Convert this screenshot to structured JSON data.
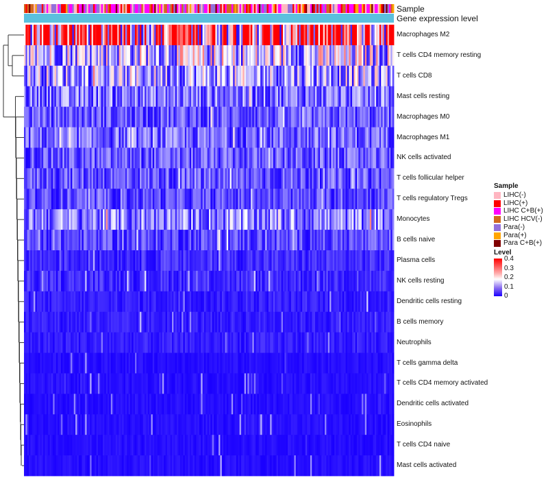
{
  "chart_data": {
    "type": "heatmap",
    "annotations": [
      "Sample",
      "Gene expression level"
    ],
    "rows": [
      {
        "label": "Macrophages M2",
        "mean": 0.3
      },
      {
        "label": "T cells CD4 memory resting",
        "mean": 0.14
      },
      {
        "label": "T cells CD8",
        "mean": 0.12
      },
      {
        "label": "Mast cells resting",
        "mean": 0.08
      },
      {
        "label": "Macrophages M0",
        "mean": 0.06
      },
      {
        "label": "Macrophages M1",
        "mean": 0.07
      },
      {
        "label": "NK cells activated",
        "mean": 0.06
      },
      {
        "label": "T cells follicular helper",
        "mean": 0.06
      },
      {
        "label": "T cells regulatory  Tregs",
        "mean": 0.05
      },
      {
        "label": "Monocytes",
        "mean": 0.09
      },
      {
        "label": "B cells naive",
        "mean": 0.05
      },
      {
        "label": "Plasma cells",
        "mean": 0.03
      },
      {
        "label": "NK cells resting",
        "mean": 0.03
      },
      {
        "label": "Dendritic cells resting",
        "mean": 0.02
      },
      {
        "label": "B cells memory",
        "mean": 0.02
      },
      {
        "label": "Neutrophils",
        "mean": 0.02
      },
      {
        "label": "T cells gamma delta",
        "mean": 0.01
      },
      {
        "label": "T cells CD4 memory activated",
        "mean": 0.01
      },
      {
        "label": "Dendritic cells activated",
        "mean": 0.01
      },
      {
        "label": "Eosinophils",
        "mean": 0.01
      },
      {
        "label": "T cells CD4 naive",
        "mean": 0.01
      },
      {
        "label": "Mast cells activated",
        "mean": 0.01
      }
    ],
    "sample_legend": {
      "title": "Sample",
      "items": [
        {
          "label": "LIHC(-)",
          "color": "#ffb6c1"
        },
        {
          "label": "LIHC(+)",
          "color": "#ff0000"
        },
        {
          "label": "LIHC C+B(+)",
          "color": "#ff00ff"
        },
        {
          "label": "LIHC HCV(-)",
          "color": "#d2691e"
        },
        {
          "label": "Para(-)",
          "color": "#9370db"
        },
        {
          "label": "Para(+)",
          "color": "#ffa500"
        },
        {
          "label": "Para C+B(+)",
          "color": "#800000"
        }
      ]
    },
    "level_legend": {
      "title": "Level",
      "ticks": [
        "0.4",
        "0.3",
        "0.2",
        "0.1",
        "0"
      ],
      "range": [
        0,
        0.4
      ]
    },
    "gene_expression_color": "#5bc0de",
    "n_columns": 230
  }
}
